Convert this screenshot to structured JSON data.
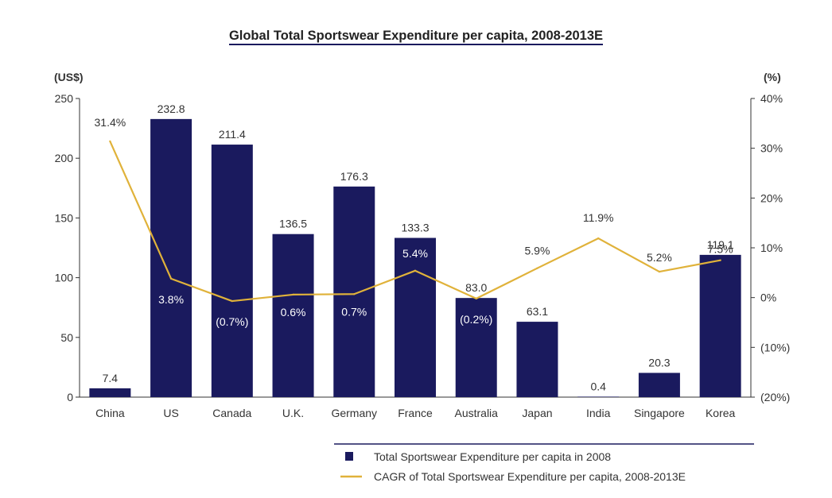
{
  "chart_data": {
    "type": "bar",
    "title": "Global Total Sportswear Expenditure per capita, 2008-2013E",
    "ylabel_left": "(US$)",
    "ylabel_right": "(%)",
    "categories": [
      "China",
      "US",
      "Canada",
      "U.K.",
      "Germany",
      "France",
      "Australia",
      "Japan",
      "India",
      "Singapore",
      "Korea"
    ],
    "ylim_left": [
      0,
      250
    ],
    "yticks_left": [
      "0",
      "50",
      "100",
      "150",
      "200",
      "250"
    ],
    "ylim_right": [
      -20,
      40
    ],
    "yticks_right": [
      "(20%)",
      "(10%)",
      "0%",
      "10%",
      "20%",
      "30%",
      "40%"
    ],
    "grid": false,
    "legend_position": "bottom-right",
    "colors": {
      "bar": "#1a1a5e",
      "line": "#e0b23a",
      "axis": "#333333"
    },
    "series": [
      {
        "name": "Total Sportswear Expenditure per capita in 2008",
        "kind": "bar",
        "axis": "left",
        "values": [
          7.4,
          232.8,
          211.4,
          136.5,
          176.3,
          133.3,
          83.0,
          63.1,
          0.4,
          20.3,
          119.1
        ],
        "labels": [
          "7.4",
          "232.8",
          "211.4",
          "136.5",
          "176.3",
          "133.3",
          "83.0",
          "63.1",
          "0.4",
          "20.3",
          "119.1"
        ]
      },
      {
        "name": "CAGR of Total Sportswear Expenditure per capita, 2008-2013E",
        "kind": "line",
        "axis": "right",
        "values": [
          31.4,
          3.8,
          -0.7,
          0.6,
          0.7,
          5.4,
          -0.2,
          5.9,
          11.9,
          5.2,
          7.5
        ],
        "labels": [
          "31.4%",
          "3.8%",
          "(0.7%)",
          "0.6%",
          "0.7%",
          "5.4%",
          "(0.2%)",
          "5.9%",
          "11.9%",
          "5.2%",
          "7.5%"
        ]
      }
    ]
  }
}
